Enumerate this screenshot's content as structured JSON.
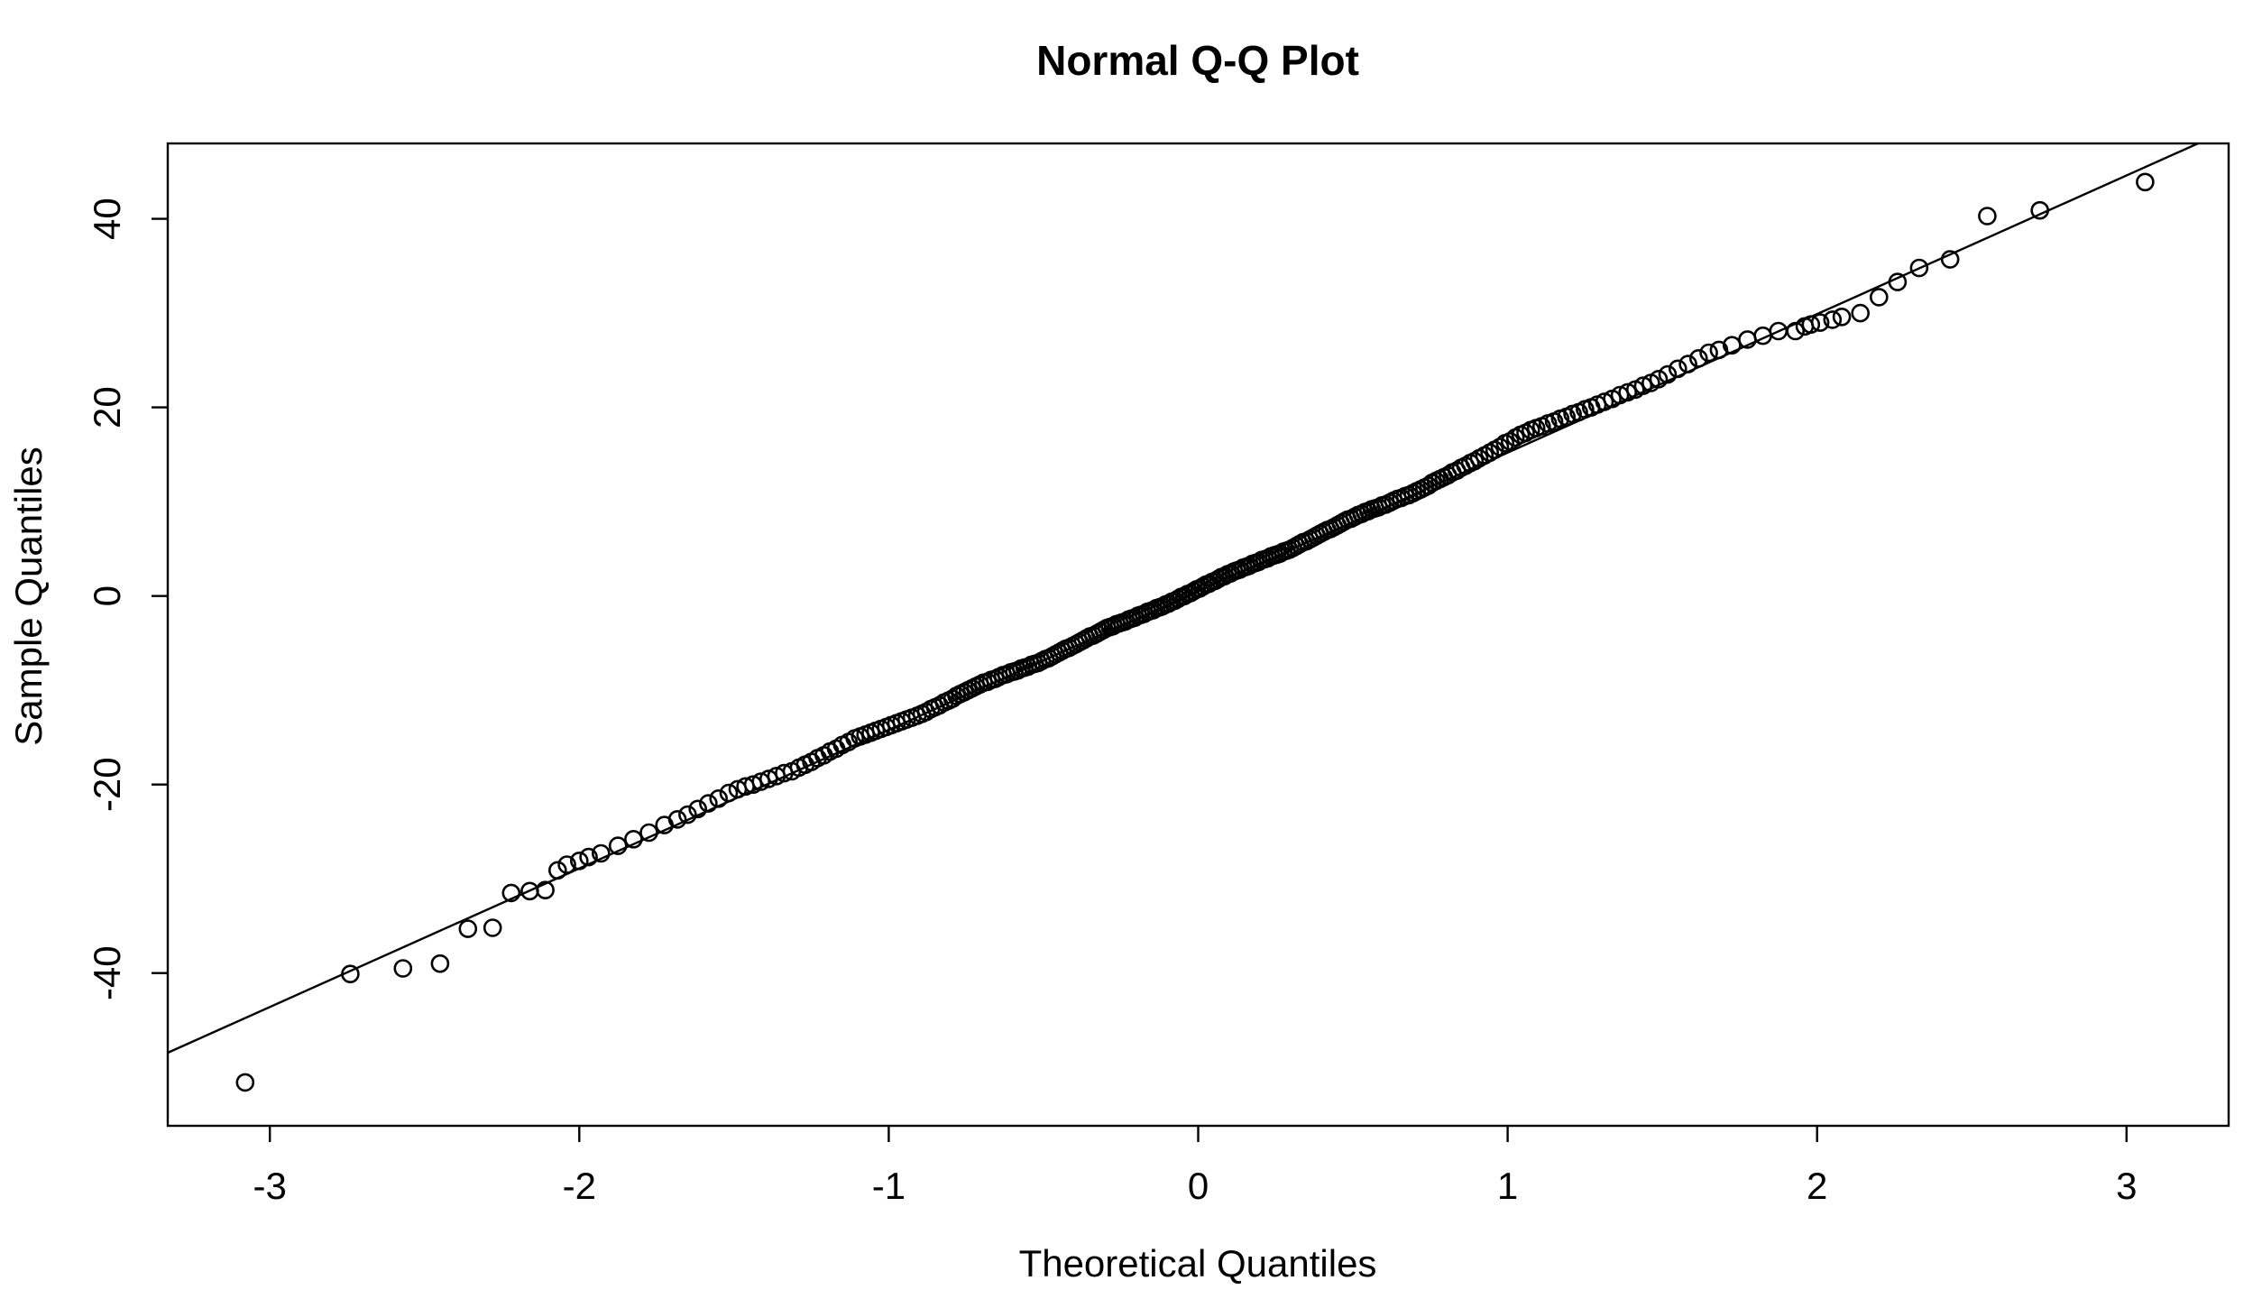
{
  "chart_data": {
    "type": "scatter",
    "variant": "normal-qq-plot",
    "title": "Normal Q-Q Plot",
    "xlabel": "Theoretical Quantiles",
    "ylabel": "Sample Quantiles",
    "xlim": [
      -3.33,
      3.33
    ],
    "ylim": [
      -56.2,
      48.0
    ],
    "xticks": [
      -3,
      -2,
      -1,
      0,
      1,
      2,
      3
    ],
    "xtick_labels": [
      "-3",
      "-2",
      "-1",
      "0",
      "1",
      "2",
      "3"
    ],
    "yticks": [
      -40,
      -20,
      0,
      20,
      40
    ],
    "ytick_labels": [
      "-40",
      "-20",
      "0",
      "20",
      "40"
    ],
    "grid": false,
    "legend_position": "none",
    "marker": "open-circle",
    "point_count": 268,
    "reference_line": {
      "slope": 14.7,
      "intercept": 0.5
    },
    "points": [
      [
        -3.08,
        -51.6
      ],
      [
        -2.74,
        -40.1
      ],
      [
        -2.57,
        -39.5
      ],
      [
        -2.45,
        -39.0
      ],
      [
        -2.36,
        -35.3
      ],
      [
        -2.28,
        -35.2
      ],
      [
        -2.22,
        -31.5
      ],
      [
        -2.16,
        -31.3
      ],
      [
        -2.11,
        -31.2
      ],
      [
        -2.07,
        -29.1
      ],
      [
        -2.04,
        -28.5
      ],
      [
        -2.0,
        -28.1
      ],
      [
        -1.97,
        -27.7
      ],
      [
        -1.93,
        -27.3
      ],
      [
        -1.875,
        -26.5
      ],
      [
        -1.825,
        -25.8
      ],
      [
        -1.775,
        -25.1
      ],
      [
        -1.725,
        -24.3
      ],
      [
        -1.683,
        -23.7
      ],
      [
        -1.65,
        -23.2
      ],
      [
        -1.617,
        -22.6
      ],
      [
        -1.583,
        -22.0
      ],
      [
        -1.55,
        -21.5
      ],
      [
        -1.517,
        -20.9
      ],
      [
        -1.488,
        -20.5
      ],
      [
        -1.463,
        -20.2
      ],
      [
        -1.438,
        -20.0
      ],
      [
        -1.413,
        -19.7
      ],
      [
        -1.388,
        -19.4
      ],
      [
        -1.363,
        -19.1
      ],
      [
        -1.338,
        -18.8
      ],
      [
        -1.313,
        -18.6
      ],
      [
        -1.29,
        -18.2
      ],
      [
        -1.27,
        -17.9
      ],
      [
        -1.25,
        -17.6
      ],
      [
        -1.23,
        -17.2
      ],
      [
        -1.21,
        -16.9
      ],
      [
        -1.19,
        -16.5
      ],
      [
        -1.17,
        -16.2
      ],
      [
        -1.15,
        -15.8
      ],
      [
        -1.13,
        -15.5
      ],
      [
        -1.11,
        -15.1
      ],
      [
        -1.092,
        -14.9
      ],
      [
        -1.075,
        -14.7
      ],
      [
        -1.058,
        -14.5
      ],
      [
        -1.042,
        -14.3
      ],
      [
        -1.025,
        -14.1
      ],
      [
        -1.008,
        -13.9
      ],
      [
        -0.992,
        -13.7
      ],
      [
        -0.975,
        -13.5
      ],
      [
        -0.958,
        -13.3
      ],
      [
        -0.942,
        -13.1
      ],
      [
        -0.925,
        -12.9
      ],
      [
        -0.908,
        -12.7
      ],
      [
        -0.893,
        -12.5
      ],
      [
        -0.879,
        -12.3
      ],
      [
        -0.864,
        -12.0
      ],
      [
        -0.85,
        -11.8
      ],
      [
        -0.836,
        -11.6
      ],
      [
        -0.821,
        -11.3
      ],
      [
        -0.807,
        -11.1
      ],
      [
        -0.794,
        -10.9
      ],
      [
        -0.781,
        -10.6
      ],
      [
        -0.769,
        -10.4
      ],
      [
        -0.756,
        -10.2
      ],
      [
        -0.744,
        -10.0
      ],
      [
        -0.731,
        -9.8
      ],
      [
        -0.719,
        -9.6
      ],
      [
        -0.706,
        -9.4
      ],
      [
        -0.694,
        -9.2
      ],
      [
        -0.681,
        -9.1
      ],
      [
        -0.669,
        -8.9
      ],
      [
        -0.656,
        -8.8
      ],
      [
        -0.644,
        -8.6
      ],
      [
        -0.631,
        -8.4
      ],
      [
        -0.619,
        -8.3
      ],
      [
        -0.606,
        -8.1
      ],
      [
        -0.594,
        -8.0
      ],
      [
        -0.583,
        -7.9
      ],
      [
        -0.572,
        -7.7
      ],
      [
        -0.561,
        -7.6
      ],
      [
        -0.55,
        -7.5
      ],
      [
        -0.539,
        -7.3
      ],
      [
        -0.528,
        -7.2
      ],
      [
        -0.517,
        -7.1
      ],
      [
        -0.506,
        -6.9
      ],
      [
        -0.494,
        -6.7
      ],
      [
        -0.483,
        -6.6
      ],
      [
        -0.472,
        -6.4
      ],
      [
        -0.461,
        -6.2
      ],
      [
        -0.45,
        -6.0
      ],
      [
        -0.439,
        -5.8
      ],
      [
        -0.428,
        -5.6
      ],
      [
        -0.417,
        -5.5
      ],
      [
        -0.406,
        -5.3
      ],
      [
        -0.394,
        -5.1
      ],
      [
        -0.383,
        -4.9
      ],
      [
        -0.372,
        -4.7
      ],
      [
        -0.361,
        -4.5
      ],
      [
        -0.35,
        -4.3
      ],
      [
        -0.339,
        -4.2
      ],
      [
        -0.328,
        -4.0
      ],
      [
        -0.317,
        -3.8
      ],
      [
        -0.306,
        -3.6
      ],
      [
        -0.295,
        -3.4
      ],
      [
        -0.285,
        -3.3
      ],
      [
        -0.275,
        -3.2
      ],
      [
        -0.265,
        -3.0
      ],
      [
        -0.255,
        -2.9
      ],
      [
        -0.245,
        -2.8
      ],
      [
        -0.235,
        -2.7
      ],
      [
        -0.225,
        -2.5
      ],
      [
        -0.215,
        -2.4
      ],
      [
        -0.205,
        -2.3
      ],
      [
        -0.195,
        -2.1
      ],
      [
        -0.185,
        -2.0
      ],
      [
        -0.175,
        -1.9
      ],
      [
        -0.165,
        -1.7
      ],
      [
        -0.155,
        -1.6
      ],
      [
        -0.145,
        -1.5
      ],
      [
        -0.135,
        -1.3
      ],
      [
        -0.125,
        -1.2
      ],
      [
        -0.115,
        -1.1
      ],
      [
        -0.105,
        -0.9
      ],
      [
        -0.095,
        -0.8
      ],
      [
        -0.085,
        -0.6
      ],
      [
        -0.075,
        -0.5
      ],
      [
        -0.065,
        -0.3
      ],
      [
        -0.055,
        -0.1
      ],
      [
        -0.045,
        0.0
      ],
      [
        -0.035,
        0.2
      ],
      [
        -0.025,
        0.3
      ],
      [
        -0.015,
        0.5
      ],
      [
        -0.005,
        0.7
      ],
      [
        0.005,
        0.8
      ],
      [
        0.015,
        1.0
      ],
      [
        0.025,
        1.2
      ],
      [
        0.035,
        1.3
      ],
      [
        0.045,
        1.5
      ],
      [
        0.055,
        1.6
      ],
      [
        0.065,
        1.8
      ],
      [
        0.075,
        2.0
      ],
      [
        0.085,
        2.1
      ],
      [
        0.095,
        2.3
      ],
      [
        0.105,
        2.4
      ],
      [
        0.115,
        2.6
      ],
      [
        0.125,
        2.7
      ],
      [
        0.135,
        2.8
      ],
      [
        0.145,
        3.0
      ],
      [
        0.155,
        3.1
      ],
      [
        0.165,
        3.2
      ],
      [
        0.175,
        3.4
      ],
      [
        0.185,
        3.5
      ],
      [
        0.195,
        3.6
      ],
      [
        0.205,
        3.8
      ],
      [
        0.215,
        3.9
      ],
      [
        0.225,
        4.0
      ],
      [
        0.235,
        4.2
      ],
      [
        0.245,
        4.3
      ],
      [
        0.255,
        4.4
      ],
      [
        0.265,
        4.5
      ],
      [
        0.275,
        4.7
      ],
      [
        0.285,
        4.8
      ],
      [
        0.295,
        4.9
      ],
      [
        0.306,
        5.1
      ],
      [
        0.317,
        5.3
      ],
      [
        0.328,
        5.5
      ],
      [
        0.339,
        5.7
      ],
      [
        0.35,
        5.8
      ],
      [
        0.361,
        6.0
      ],
      [
        0.372,
        6.2
      ],
      [
        0.383,
        6.4
      ],
      [
        0.394,
        6.6
      ],
      [
        0.406,
        6.8
      ],
      [
        0.417,
        7.0
      ],
      [
        0.428,
        7.1
      ],
      [
        0.439,
        7.3
      ],
      [
        0.45,
        7.5
      ],
      [
        0.461,
        7.7
      ],
      [
        0.472,
        7.9
      ],
      [
        0.483,
        8.1
      ],
      [
        0.494,
        8.2
      ],
      [
        0.506,
        8.4
      ],
      [
        0.517,
        8.6
      ],
      [
        0.528,
        8.7
      ],
      [
        0.539,
        8.9
      ],
      [
        0.55,
        9.0
      ],
      [
        0.561,
        9.2
      ],
      [
        0.572,
        9.3
      ],
      [
        0.583,
        9.4
      ],
      [
        0.594,
        9.6
      ],
      [
        0.606,
        9.7
      ],
      [
        0.619,
        9.9
      ],
      [
        0.631,
        10.1
      ],
      [
        0.644,
        10.3
      ],
      [
        0.656,
        10.4
      ],
      [
        0.669,
        10.6
      ],
      [
        0.681,
        10.7
      ],
      [
        0.694,
        10.9
      ],
      [
        0.706,
        11.1
      ],
      [
        0.719,
        11.3
      ],
      [
        0.731,
        11.5
      ],
      [
        0.744,
        11.7
      ],
      [
        0.756,
        12.0
      ],
      [
        0.769,
        12.2
      ],
      [
        0.781,
        12.4
      ],
      [
        0.794,
        12.6
      ],
      [
        0.807,
        12.8
      ],
      [
        0.821,
        13.1
      ],
      [
        0.836,
        13.3
      ],
      [
        0.85,
        13.6
      ],
      [
        0.864,
        13.8
      ],
      [
        0.879,
        14.1
      ],
      [
        0.893,
        14.3
      ],
      [
        0.908,
        14.6
      ],
      [
        0.925,
        14.9
      ],
      [
        0.942,
        15.2
      ],
      [
        0.958,
        15.5
      ],
      [
        0.975,
        15.8
      ],
      [
        0.992,
        16.2
      ],
      [
        1.008,
        16.4
      ],
      [
        1.025,
        16.8
      ],
      [
        1.042,
        17.1
      ],
      [
        1.058,
        17.3
      ],
      [
        1.075,
        17.6
      ],
      [
        1.092,
        17.8
      ],
      [
        1.11,
        18.0
      ],
      [
        1.13,
        18.3
      ],
      [
        1.15,
        18.5
      ],
      [
        1.17,
        18.8
      ],
      [
        1.19,
        19.0
      ],
      [
        1.21,
        19.3
      ],
      [
        1.23,
        19.5
      ],
      [
        1.25,
        19.8
      ],
      [
        1.27,
        20.0
      ],
      [
        1.29,
        20.3
      ],
      [
        1.313,
        20.6
      ],
      [
        1.338,
        20.9
      ],
      [
        1.363,
        21.3
      ],
      [
        1.388,
        21.6
      ],
      [
        1.413,
        21.9
      ],
      [
        1.438,
        22.3
      ],
      [
        1.463,
        22.6
      ],
      [
        1.488,
        23.0
      ],
      [
        1.517,
        23.5
      ],
      [
        1.55,
        24.1
      ],
      [
        1.583,
        24.6
      ],
      [
        1.617,
        25.2
      ],
      [
        1.65,
        25.8
      ],
      [
        1.683,
        26.1
      ],
      [
        1.725,
        26.6
      ],
      [
        1.775,
        27.2
      ],
      [
        1.825,
        27.6
      ],
      [
        1.875,
        28.1
      ],
      [
        1.93,
        28.1
      ],
      [
        1.96,
        28.6
      ],
      [
        1.98,
        28.8
      ],
      [
        2.01,
        29.0
      ],
      [
        2.05,
        29.3
      ],
      [
        2.08,
        29.6
      ],
      [
        2.14,
        30.0
      ],
      [
        2.2,
        31.7
      ],
      [
        2.26,
        33.3
      ],
      [
        2.33,
        34.8
      ],
      [
        2.43,
        35.7
      ],
      [
        2.55,
        40.3
      ],
      [
        2.72,
        40.9
      ],
      [
        3.06,
        43.9
      ]
    ]
  },
  "colors": {
    "foreground": "#000000",
    "background": "#ffffff"
  }
}
